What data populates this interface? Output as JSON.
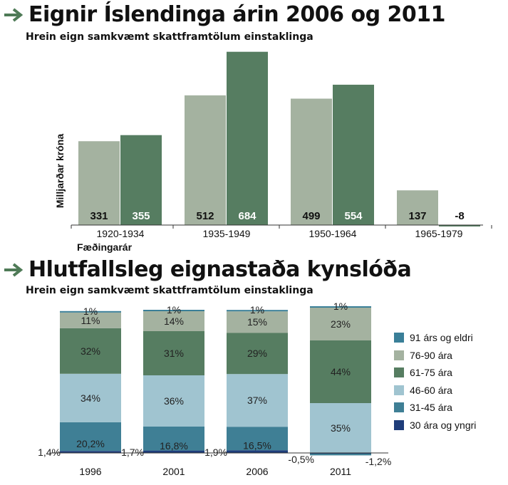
{
  "chart1": {
    "title": "Eignir Íslendinga árin 2006 og 2011",
    "subtitle": "Hrein eign samkvæmt skattframtölum einstaklinga",
    "ylabel": "Milljarðar króna",
    "xlabel": "Fæðingarár",
    "colors": {
      "y2006": "#a4b2a0",
      "y2011": "#567d61"
    },
    "chart_data": {
      "type": "bar",
      "categories": [
        "1920-1934",
        "1935-1949",
        "1950-1964",
        "1965-1979"
      ],
      "series": [
        {
          "values": [
            331,
            512,
            499,
            137
          ]
        },
        {
          "values": [
            355,
            684,
            554,
            -8
          ]
        }
      ]
    }
  },
  "chart2": {
    "title": "Hlutfallsleg eignastaða kynslóða",
    "subtitle": "Hrein eign samkvæmt skattframtölum einstaklinga",
    "chart_data": {
      "type": "bar",
      "stacked": true,
      "categories": [
        "1996",
        "2001",
        "2006",
        "2011"
      ],
      "series": [
        {
          "name": "30 ára og yngri",
          "color": "#1f3d7a",
          "values": [
            1.4,
            1.7,
            1.9,
            -0.5
          ],
          "labels": [
            "1,4%",
            "1,7%",
            "1,9%",
            "-0,5%"
          ]
        },
        {
          "name": "31-45 ára",
          "color": "#3f7f95",
          "values": [
            20.2,
            16.8,
            16.5,
            -1.2
          ],
          "labels": [
            "20,2%",
            "16,8%",
            "16,5%",
            "-1,2%"
          ]
        },
        {
          "name": "46-60 ára",
          "color": "#a0c4d0",
          "values": [
            34,
            36,
            37,
            35
          ],
          "labels": [
            "34%",
            "36%",
            "37%",
            "35%"
          ]
        },
        {
          "name": "61-75 ára",
          "color": "#567d61",
          "values": [
            32,
            31,
            29,
            44
          ],
          "labels": [
            "32%",
            "31%",
            "29%",
            "44%"
          ]
        },
        {
          "name": "76-90 ára",
          "color": "#a4b2a0",
          "values": [
            11,
            14,
            15,
            23
          ],
          "labels": [
            "11%",
            "14%",
            "15%",
            "23%"
          ]
        },
        {
          "name": "91 árs og eldri",
          "color": "#3a7f98",
          "values": [
            1,
            1,
            1,
            1
          ],
          "labels": [
            "1%",
            "1%",
            "1%",
            "1%"
          ]
        }
      ]
    }
  }
}
